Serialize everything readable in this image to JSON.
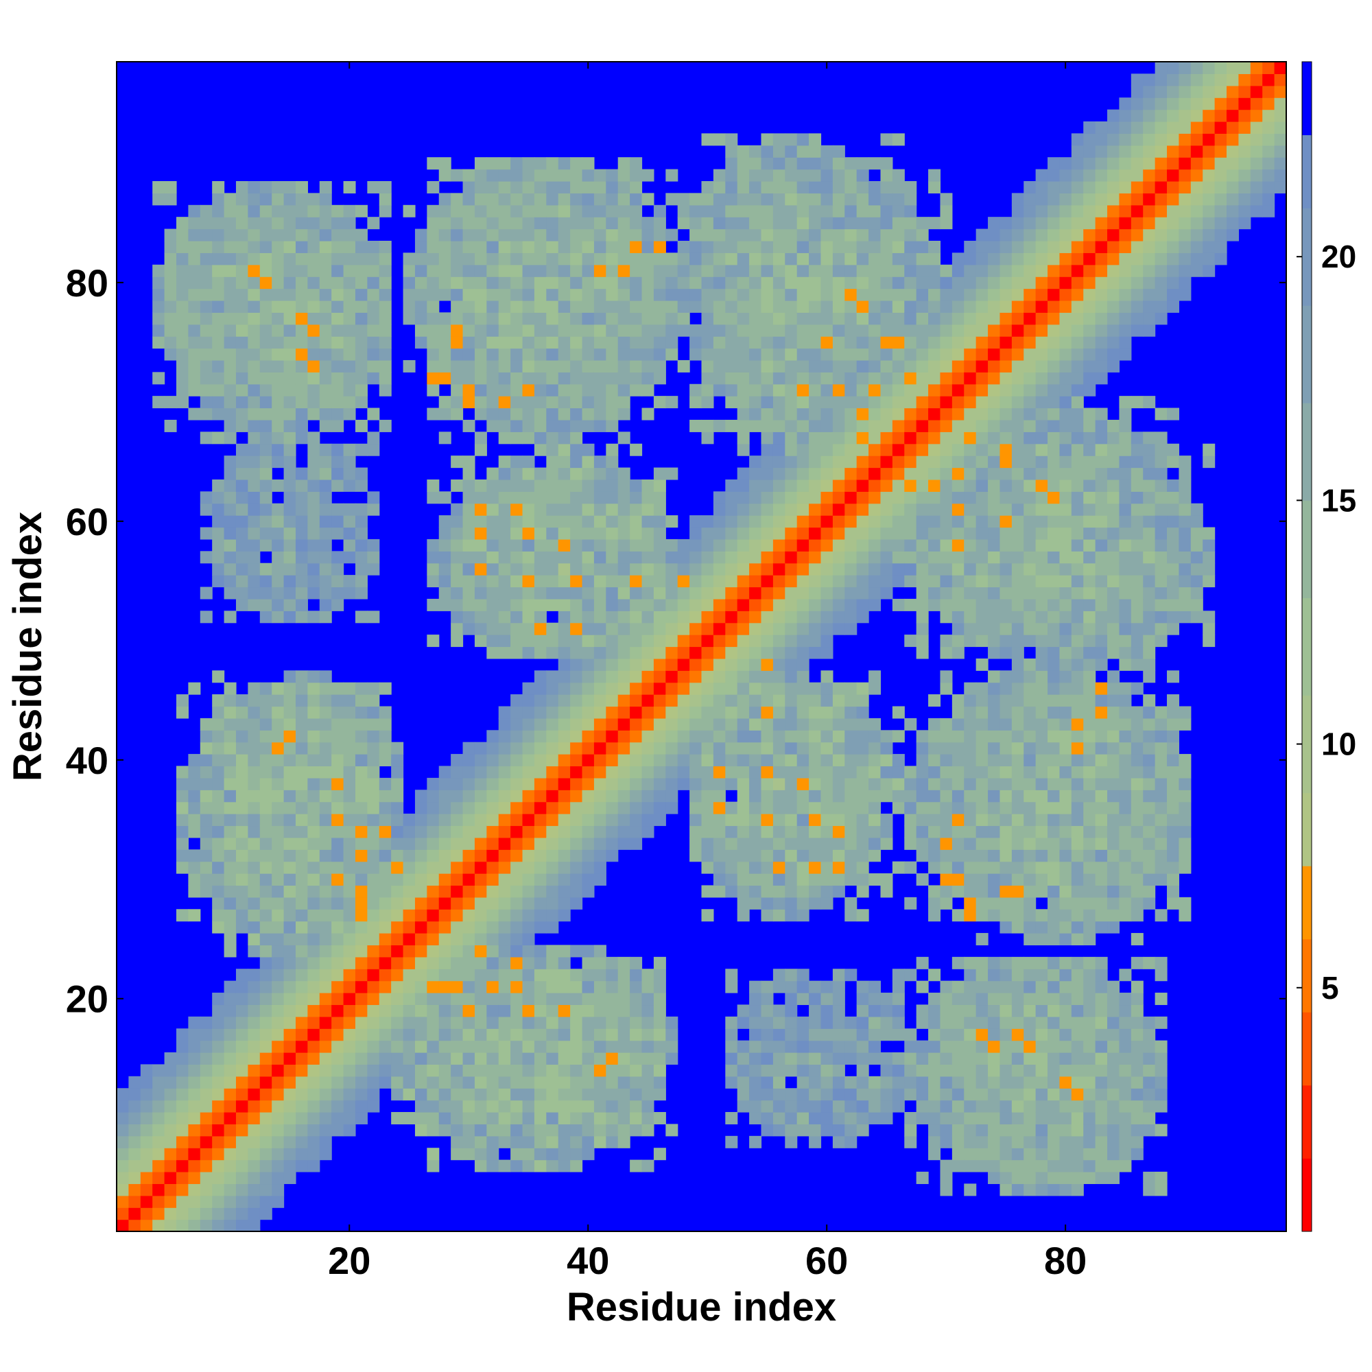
{
  "chart_data": {
    "type": "heatmap",
    "title": "",
    "xlabel": "Residue index",
    "ylabel": "Residue index",
    "n_residues": 98,
    "xlim": [
      0.5,
      98.5
    ],
    "ylim": [
      0.5,
      98.5
    ],
    "x_ticks": [
      20,
      40,
      60,
      80
    ],
    "y_ticks": [
      20,
      40,
      60,
      80
    ],
    "x_tick_labels": [
      "20",
      "40",
      "60",
      "80"
    ],
    "y_tick_labels": [
      "20",
      "40",
      "60",
      "80"
    ],
    "colorbar": {
      "min": 0,
      "max": 24,
      "ticks": [
        5,
        10,
        15,
        20
      ],
      "tick_labels": [
        "5",
        "10",
        "15",
        "20"
      ],
      "boundaries": [
        0,
        1.5,
        3,
        4.5,
        6,
        7.5,
        9,
        11,
        13,
        15,
        17,
        19,
        21,
        22.5,
        24
      ],
      "colors": [
        "#ff0000",
        "#ff2200",
        "#ff5500",
        "#ff7700",
        "#ff9500",
        "#b0c484",
        "#a8c28c",
        "#9ec094",
        "#94b69c",
        "#8aaaa8",
        "#7f9fb4",
        "#7797bc",
        "#6f8fc4",
        "#0000ff"
      ]
    },
    "background_color": "#0000ff",
    "diagonal_color": "#ff0000",
    "near_diagonal_color": "#ff7700",
    "contact_cutoff": 22.5,
    "diagonal_band": [
      {
        "offset": 0,
        "distance": 1.2
      },
      {
        "offset": 1,
        "distance": 3.8
      },
      {
        "offset": 2,
        "distance": 5.8
      },
      {
        "offset": 3,
        "distance": 8.5
      },
      {
        "offset": 4,
        "distance": 10.0
      },
      {
        "offset": 5,
        "distance": 12.0
      },
      {
        "offset": 6,
        "distance": 14.0
      },
      {
        "offset": 7,
        "distance": 16.0
      },
      {
        "offset": 8,
        "distance": 18.0
      },
      {
        "offset": 9,
        "distance": 19.5
      },
      {
        "offset": 10,
        "distance": 21.0
      },
      {
        "offset": 11,
        "distance": 22.0
      }
    ],
    "contact_blocks": [
      {
        "i_range": [
          4,
          23
        ],
        "j_range": [
          69,
          88
        ],
        "mean_distance": 15
      },
      {
        "i_range": [
          25,
          48
        ],
        "j_range": [
          69,
          90
        ],
        "mean_distance": 15
      },
      {
        "i_range": [
          29,
          46
        ],
        "j_range": [
          49,
          66
        ],
        "mean_distance": 14
      },
      {
        "i_range": [
          6,
          23
        ],
        "j_range": [
          24,
          46
        ],
        "mean_distance": 14
      },
      {
        "i_range": [
          25,
          47
        ],
        "j_range": [
          9,
          24
        ],
        "mean_distance": 15
      },
      {
        "i_range": [
          49,
          64
        ],
        "j_range": [
          27,
          47
        ],
        "mean_distance": 15
      },
      {
        "i_range": [
          50,
          70
        ],
        "j_range": [
          66,
          89
        ],
        "mean_distance": 15
      },
      {
        "i_range": [
          67,
          90
        ],
        "j_range": [
          27,
          46
        ],
        "mean_distance": 15
      },
      {
        "i_range": [
          67,
          88
        ],
        "j_range": [
          5,
          23
        ],
        "mean_distance": 15
      },
      {
        "i_range": [
          68,
          92
        ],
        "j_range": [
          48,
          66
        ],
        "mean_distance": 15
      },
      {
        "i_range": [
          52,
          67
        ],
        "j_range": [
          8,
          22
        ],
        "mean_distance": 17
      }
    ],
    "close_contacts": [
      [
        13,
        80
      ],
      [
        17,
        76
      ],
      [
        17,
        73
      ],
      [
        28,
        72
      ],
      [
        30,
        70
      ],
      [
        33,
        70
      ],
      [
        29,
        76
      ],
      [
        35,
        71
      ],
      [
        44,
        83
      ],
      [
        46,
        83
      ],
      [
        31,
        59
      ],
      [
        35,
        59
      ],
      [
        35,
        55
      ],
      [
        39,
        55
      ],
      [
        36,
        51
      ],
      [
        39,
        51
      ],
      [
        19,
        38
      ],
      [
        19,
        35
      ],
      [
        21,
        34
      ],
      [
        23,
        34
      ],
      [
        19,
        30
      ],
      [
        21,
        28
      ],
      [
        24,
        31
      ],
      [
        15,
        42
      ],
      [
        27,
        21
      ],
      [
        29,
        21
      ],
      [
        31,
        24
      ],
      [
        32,
        21
      ],
      [
        35,
        19
      ],
      [
        38,
        19
      ],
      [
        41,
        14
      ],
      [
        55,
        48
      ],
      [
        55,
        44
      ],
      [
        58,
        38
      ],
      [
        61,
        34
      ],
      [
        61,
        31
      ],
      [
        56,
        31
      ],
      [
        51,
        39
      ],
      [
        63,
        78
      ],
      [
        66,
        75
      ],
      [
        61,
        71
      ],
      [
        64,
        71
      ],
      [
        63,
        67
      ],
      [
        69,
        63
      ],
      [
        72,
        67
      ],
      [
        75,
        65
      ],
      [
        79,
        62
      ],
      [
        75,
        60
      ],
      [
        71,
        58
      ],
      [
        81,
        41
      ],
      [
        81,
        43
      ],
      [
        71,
        30
      ],
      [
        72,
        27
      ],
      [
        75,
        29
      ],
      [
        74,
        16
      ],
      [
        77,
        16
      ],
      [
        81,
        12
      ]
    ]
  }
}
